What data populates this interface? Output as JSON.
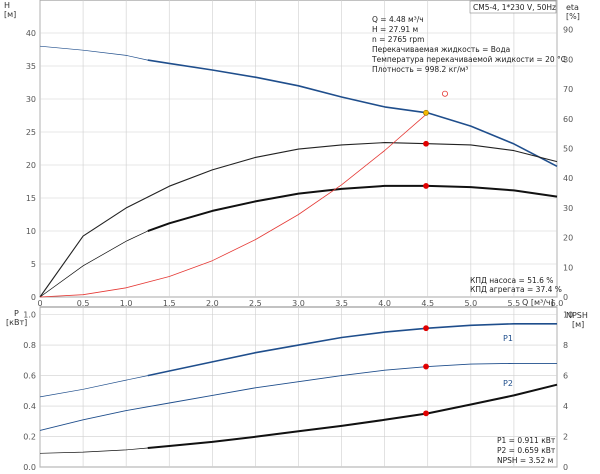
{
  "header": {
    "pump_label": "CM5-4, 1*230 V, 50Hz",
    "info_lines": [
      "Q = 4.48 м³/ч",
      "H = 27.91 м",
      "n = 2765 rpm",
      "Перекачиваемая жидкость = Вода",
      "Температура перекачиваемой жидкости = 20 °C",
      "Плотность = 998.2 кг/м³"
    ]
  },
  "chart_data": [
    {
      "type": "line",
      "panel": "top",
      "x_axis": {
        "label": "Q [м³/ч]",
        "range": [
          0,
          6.0
        ],
        "ticks": [
          0,
          0.5,
          1.0,
          1.5,
          2.0,
          2.5,
          3.0,
          3.5,
          4.0,
          4.5,
          5.0,
          5.5,
          6.0
        ],
        "tick_labels": [
          "0",
          "0.5",
          "1.0",
          "1.5",
          "2.0",
          "2.5",
          "3.0",
          "3.5",
          "4.0",
          "4.5",
          "5.0",
          "5.5",
          "6.0"
        ]
      },
      "y_left": {
        "label_lines": [
          "H",
          "[м]"
        ],
        "range": [
          0,
          45
        ],
        "ticks": [
          0,
          5,
          10,
          15,
          20,
          25,
          30,
          35,
          40
        ]
      },
      "y_right": {
        "label_lines": [
          "eta",
          "[%]"
        ],
        "range": [
          0,
          100
        ],
        "ticks": [
          0,
          10,
          20,
          30,
          40,
          50,
          60,
          70,
          80,
          90
        ]
      },
      "grid": true,
      "series": [
        {
          "id": "H",
          "axis": "left",
          "color": "#1f4e8c",
          "width": 1.6,
          "thin_x": [
            0,
            1.25
          ],
          "x": [
            1.25,
            1.5,
            2.0,
            2.5,
            3.0,
            3.5,
            4.0,
            4.5,
            5.0,
            5.5,
            6.0
          ],
          "y": [
            35.9,
            35.4,
            34.4,
            33.3,
            32.0,
            30.3,
            28.8,
            27.9,
            25.9,
            23.2,
            19.8
          ],
          "thin_pts": [
            [
              0,
              38.0
            ],
            [
              0.5,
              37.4
            ],
            [
              1.0,
              36.6
            ],
            [
              1.25,
              35.9
            ]
          ]
        },
        {
          "id": "eta_pump",
          "axis": "right",
          "color": "#222222",
          "width": 1.1,
          "x": [
            0,
            0.5,
            1.0,
            1.5,
            2.0,
            2.5,
            3.0,
            3.5,
            4.0,
            4.5,
            5.0,
            5.5,
            6.0
          ],
          "y": [
            0,
            20.5,
            30.0,
            37.3,
            42.8,
            47.0,
            49.8,
            51.2,
            52.0,
            51.6,
            51.2,
            49.3,
            45.6
          ]
        },
        {
          "id": "eta_unit",
          "axis": "right",
          "color": "#111111",
          "width": 2.0,
          "thin_x": [
            0,
            1.25
          ],
          "x": [
            1.25,
            1.5,
            2.0,
            2.5,
            3.0,
            3.5,
            4.0,
            4.5,
            5.0,
            5.5,
            6.0
          ],
          "y": [
            22.2,
            24.8,
            29.0,
            32.2,
            34.8,
            36.4,
            37.4,
            37.4,
            37.0,
            35.9,
            33.8
          ],
          "thin_pts": [
            [
              0,
              0
            ],
            [
              0.5,
              10.5
            ],
            [
              1.0,
              18.8
            ],
            [
              1.25,
              22.2
            ]
          ]
        },
        {
          "id": "system",
          "axis": "left",
          "color": "#e53935",
          "width": 0.8,
          "x": [
            0,
            0.5,
            1.0,
            1.5,
            2.0,
            2.5,
            3.0,
            3.5,
            4.0,
            4.5
          ],
          "y": [
            0,
            0.35,
            1.4,
            3.1,
            5.5,
            8.7,
            12.5,
            17.0,
            22.2,
            27.9
          ]
        }
      ],
      "markers": [
        {
          "x": 4.48,
          "y": 27.91,
          "axis": "left",
          "fill": "#f5b800",
          "stroke": "#8a6a00"
        },
        {
          "x": 4.48,
          "y": 51.6,
          "axis": "right",
          "fill": "#e00000",
          "stroke": "#e00000"
        },
        {
          "x": 4.48,
          "y": 37.4,
          "axis": "right",
          "fill": "#e00000",
          "stroke": "#e00000"
        },
        {
          "x": 4.7,
          "y": 30.8,
          "axis": "left",
          "fill": "none",
          "stroke": "#e53935",
          "hollow": true
        }
      ],
      "annotations": [
        "КПД насоса = 51.6 %",
        "КПД агрегата = 37.4 %"
      ]
    },
    {
      "type": "line",
      "panel": "bottom",
      "x_axis": {
        "range": [
          0,
          6.0
        ]
      },
      "y_left": {
        "label_lines": [
          "P",
          "[кВт]"
        ],
        "range": [
          0,
          1.05
        ],
        "ticks": [
          0,
          0.2,
          0.4,
          0.6,
          0.8,
          1.0
        ],
        "tick_labels": [
          "0.0",
          "0.2",
          "0.4",
          "0.6",
          "0.8",
          "1.0"
        ]
      },
      "y_right": {
        "label_lines": [
          "NPSH",
          "[м]"
        ],
        "range": [
          0,
          10.5
        ],
        "ticks": [
          0,
          2,
          4,
          6,
          8,
          10
        ]
      },
      "grid": true,
      "series": [
        {
          "id": "P1",
          "name": "P1",
          "axis": "left",
          "color": "#1f4e8c",
          "width": 1.6,
          "thin_x": [
            0,
            1.25
          ],
          "x": [
            1.25,
            1.5,
            2.0,
            2.5,
            3.0,
            3.5,
            4.0,
            4.5,
            5.0,
            5.5,
            6.0
          ],
          "y": [
            0.6,
            0.63,
            0.69,
            0.75,
            0.8,
            0.85,
            0.885,
            0.911,
            0.93,
            0.94,
            0.94
          ],
          "thin_pts": [
            [
              0,
              0.46
            ],
            [
              0.5,
              0.51
            ],
            [
              1.0,
              0.57
            ],
            [
              1.25,
              0.6
            ]
          ]
        },
        {
          "id": "P2",
          "name": "P2",
          "axis": "left",
          "color": "#1f4e8c",
          "width": 0.9,
          "x": [
            0,
            0.5,
            1.0,
            1.5,
            2.0,
            2.5,
            3.0,
            3.5,
            4.0,
            4.5,
            5.0,
            5.5,
            6.0
          ],
          "y": [
            0.24,
            0.31,
            0.37,
            0.42,
            0.47,
            0.52,
            0.56,
            0.6,
            0.635,
            0.659,
            0.675,
            0.68,
            0.68
          ]
        },
        {
          "id": "NPSH",
          "axis": "right",
          "color": "#111111",
          "width": 2.0,
          "thin_x": [
            0,
            1.25
          ],
          "x": [
            1.25,
            1.5,
            2.0,
            2.5,
            3.0,
            3.5,
            4.0,
            4.5,
            5.0,
            5.5,
            6.0
          ],
          "y": [
            1.25,
            1.38,
            1.65,
            1.98,
            2.35,
            2.7,
            3.1,
            3.52,
            4.1,
            4.7,
            5.4
          ],
          "thin_pts": [
            [
              0,
              0.9
            ],
            [
              0.5,
              0.98
            ],
            [
              1.0,
              1.12
            ],
            [
              1.25,
              1.25
            ]
          ]
        }
      ],
      "markers": [
        {
          "x": 4.48,
          "y": 0.911,
          "axis": "left",
          "fill": "#e00000",
          "stroke": "#e00000"
        },
        {
          "x": 4.48,
          "y": 0.659,
          "axis": "left",
          "fill": "#e00000",
          "stroke": "#e00000"
        },
        {
          "x": 4.48,
          "y": 3.52,
          "axis": "right",
          "fill": "#e00000",
          "stroke": "#e00000"
        }
      ],
      "annotations": [
        "P1 = 0.911 кВт",
        "P2 = 0.659 кВт",
        "NPSH = 3.52 м"
      ]
    }
  ],
  "colors": {
    "grid": "#cfcfcf",
    "axis": "#666666",
    "blue": "#1f4e8c",
    "operating_point": "#e00000"
  }
}
